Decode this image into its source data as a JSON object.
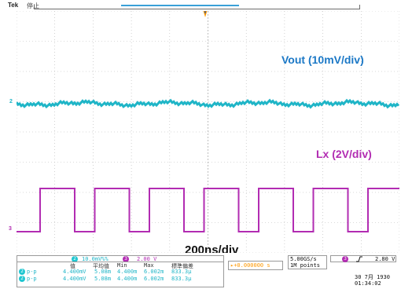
{
  "header": {
    "brand": "Tek",
    "status": "停止"
  },
  "screen": {
    "vout_label": "Vout (10mV/div)",
    "lx_label": "Lx (2V/div)",
    "time_label": "200ns/div",
    "ch2_marker": "2",
    "ch3_marker": "3",
    "trigger_marker": "T",
    "colors": {
      "ch2": "#1fb5c7",
      "ch3": "#b22cb2",
      "trigger": "#ff9800",
      "grid": "#b5b5b5"
    }
  },
  "scale_bar": {
    "ch2_badge": "2",
    "ch2_scale": "10.0mV%%",
    "ch3_badge": "3",
    "ch3_scale": "2.00 V"
  },
  "measurements": {
    "headers": [
      "值",
      "平均值",
      "Min",
      "Max",
      "標準偏差"
    ],
    "rows": [
      {
        "badge": "2",
        "type": "p-p",
        "values": [
          "4.400mV",
          "5.08m",
          "4.400m",
          "6.002m",
          "833.3μ"
        ]
      },
      {
        "badge": "2",
        "type": "p-p",
        "values": [
          "4.400mV",
          "5.08m",
          "4.400m",
          "6.002m",
          "833.3μ"
        ]
      }
    ]
  },
  "trigger_position": {
    "text": "▸+0.000000 s"
  },
  "acquisition": {
    "sample_rate": "5.00GS/s",
    "record_length": "1M points"
  },
  "trigger_setup": {
    "source_badge": "3",
    "slope_icon": "rising-edge-icon",
    "level": "2.80 V"
  },
  "datetime": {
    "date": "30 7月  1930",
    "time": "01:34:02"
  }
}
